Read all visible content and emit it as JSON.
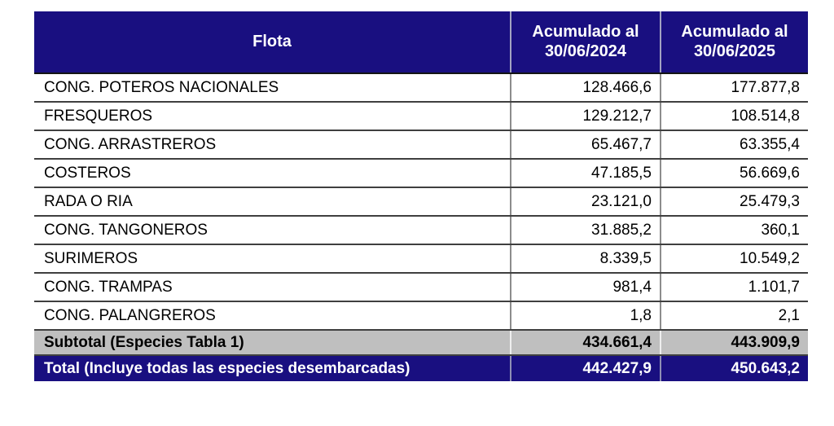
{
  "theme": {
    "header_bg": "#190f80",
    "header_text": "#ffffff",
    "subtotal_bg": "#bfbfbf",
    "total_bg": "#190f80",
    "total_text": "#ffffff",
    "row_border": "#3f3f3f",
    "col_border": "#8c8c8c"
  },
  "table": {
    "columns": [
      {
        "label": "Flota"
      },
      {
        "label_line1": "Acumulado al",
        "label_line2": "30/06/2024"
      },
      {
        "label_line1": "Acumulado al",
        "label_line2": "30/06/2025"
      }
    ],
    "rows": [
      {
        "flota": "CONG. POTEROS NACIONALES",
        "acum_2024": "128.466,6",
        "acum_2025": "177.877,8"
      },
      {
        "flota": "FRESQUEROS",
        "acum_2024": "129.212,7",
        "acum_2025": "108.514,8"
      },
      {
        "flota": "CONG. ARRASTREROS",
        "acum_2024": "65.467,7",
        "acum_2025": "63.355,4"
      },
      {
        "flota": "COSTEROS",
        "acum_2024": "47.185,5",
        "acum_2025": "56.669,6"
      },
      {
        "flota": "RADA O RIA",
        "acum_2024": "23.121,0",
        "acum_2025": "25.479,3"
      },
      {
        "flota": "CONG. TANGONEROS",
        "acum_2024": "31.885,2",
        "acum_2025": "360,1"
      },
      {
        "flota": "SURIMEROS",
        "acum_2024": "8.339,5",
        "acum_2025": "10.549,2"
      },
      {
        "flota": "CONG. TRAMPAS",
        "acum_2024": "981,4",
        "acum_2025": "1.101,7"
      },
      {
        "flota": "CONG. PALANGREROS",
        "acum_2024": "1,8",
        "acum_2025": "2,1"
      }
    ],
    "subtotal": {
      "label": "Subtotal (Especies Tabla 1)",
      "acum_2024": "434.661,4",
      "acum_2025": "443.909,9"
    },
    "total": {
      "label": "Total (Incluye todas las especies desembarcadas)",
      "acum_2024": "442.427,9",
      "acum_2025": "450.643,2"
    }
  }
}
